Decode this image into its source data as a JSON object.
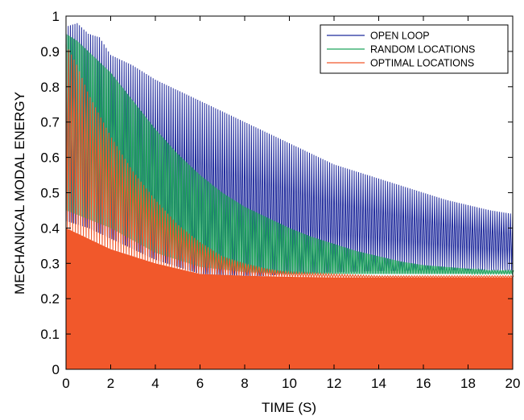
{
  "chart_data": {
    "type": "line",
    "title": "",
    "xlabel": "TIME (S)",
    "ylabel": "MECHANICAL MODAL ENERGY",
    "xlim": [
      0,
      20
    ],
    "ylim": [
      0,
      1
    ],
    "x_ticks": [
      0,
      2,
      4,
      6,
      8,
      10,
      12,
      14,
      16,
      18,
      20
    ],
    "y_ticks": [
      0,
      0.1,
      0.2,
      0.3,
      0.4,
      0.5,
      0.6,
      0.7,
      0.8,
      0.9,
      1
    ],
    "legend_position": "top-right",
    "series": [
      {
        "name": "OPEN LOOP",
        "color": "#1f2a9c",
        "upper_envelope": {
          "x": [
            0,
            0.5,
            1,
            1.5,
            2,
            3,
            4,
            5,
            6,
            7,
            8,
            9,
            10,
            11,
            12,
            13,
            14,
            15,
            16,
            17,
            18,
            19,
            20
          ],
          "y": [
            0.97,
            0.98,
            0.95,
            0.94,
            0.89,
            0.86,
            0.82,
            0.79,
            0.76,
            0.73,
            0.7,
            0.67,
            0.64,
            0.61,
            0.58,
            0.56,
            0.54,
            0.52,
            0.5,
            0.48,
            0.465,
            0.45,
            0.44
          ]
        },
        "lower_envelope": {
          "x": [
            0,
            0.5,
            1,
            2,
            3,
            4,
            5,
            6,
            7,
            8,
            9,
            10,
            12,
            14,
            16,
            18,
            20
          ],
          "y": [
            0.42,
            0.41,
            0.4,
            0.37,
            0.34,
            0.31,
            0.29,
            0.27,
            0.26,
            0.26,
            0.265,
            0.27,
            0.275,
            0.278,
            0.28,
            0.28,
            0.28
          ]
        }
      },
      {
        "name": "RANDOM LOCATIONS",
        "color": "#1fa35c",
        "upper_envelope": {
          "x": [
            0,
            0.5,
            1,
            1.5,
            2,
            3,
            4,
            5,
            6,
            7,
            8,
            9,
            10,
            11,
            12,
            13,
            14,
            15,
            16,
            17,
            18,
            19,
            20
          ],
          "y": [
            0.95,
            0.93,
            0.9,
            0.87,
            0.84,
            0.76,
            0.68,
            0.61,
            0.55,
            0.5,
            0.46,
            0.43,
            0.4,
            0.375,
            0.355,
            0.335,
            0.32,
            0.305,
            0.295,
            0.29,
            0.285,
            0.28,
            0.28
          ]
        },
        "lower_envelope": {
          "x": [
            0,
            2,
            4,
            6,
            8,
            10,
            12,
            14,
            16,
            18,
            20
          ],
          "y": [
            0.45,
            0.4,
            0.33,
            0.29,
            0.275,
            0.27,
            0.27,
            0.27,
            0.27,
            0.27,
            0.27
          ]
        }
      },
      {
        "name": "OPTIMAL LOCATIONS",
        "color": "#f1582b",
        "upper_envelope": {
          "x": [
            0,
            0.5,
            1,
            1.5,
            2,
            3,
            4,
            5,
            6,
            7,
            8,
            9,
            10,
            12,
            14,
            16,
            18,
            20
          ],
          "y": [
            0.92,
            0.86,
            0.78,
            0.72,
            0.66,
            0.56,
            0.48,
            0.41,
            0.36,
            0.32,
            0.3,
            0.285,
            0.275,
            0.27,
            0.265,
            0.265,
            0.265,
            0.265
          ]
        },
        "solid_level": {
          "x": [
            0,
            1,
            2,
            4,
            6,
            8,
            10,
            12,
            14,
            16,
            18,
            20
          ],
          "y": [
            0.4,
            0.37,
            0.34,
            0.3,
            0.27,
            0.265,
            0.262,
            0.26,
            0.26,
            0.26,
            0.26,
            0.26
          ]
        }
      }
    ]
  }
}
